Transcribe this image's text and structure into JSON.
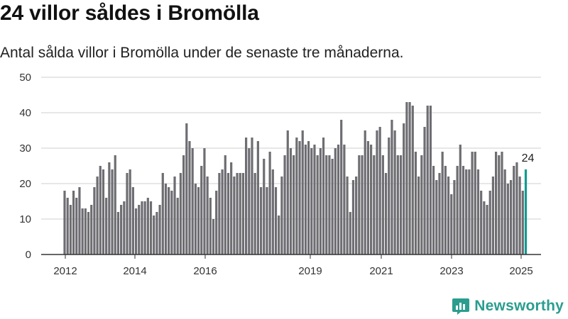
{
  "header": {
    "title": "24 villor såldes i Bromölla",
    "subtitle": "Antal sålda villor i Bromölla under de senaste tre månaderna."
  },
  "brand": {
    "name": "Newsworthy",
    "icon": "newsworthy-logo-icon"
  },
  "colors": {
    "bar": "#6e6d72",
    "highlight": "#0e9c93",
    "axis": "#333333",
    "grid": "#cfcfcf",
    "brand": "#2a9d8f"
  },
  "chart_data": {
    "type": "bar",
    "title": "",
    "xlabel": "",
    "ylabel": "",
    "ylim": [
      0,
      50
    ],
    "yticks": [
      0,
      10,
      20,
      30,
      40,
      50
    ],
    "xticks": [
      "2012",
      "2014",
      "2016",
      "2019",
      "2021",
      "2023",
      "2025"
    ],
    "grid": true,
    "highlight_label": "24",
    "values": [
      18,
      16,
      14,
      18,
      16,
      19,
      13,
      13,
      12,
      14,
      19,
      22,
      25,
      24,
      16,
      26,
      24,
      28,
      12,
      14,
      15,
      23,
      24,
      19,
      13,
      14,
      15,
      15,
      16,
      15,
      11,
      12,
      14,
      23,
      20,
      19,
      18,
      22,
      16,
      23,
      28,
      37,
      32,
      30,
      20,
      19,
      25,
      30,
      22,
      16,
      10,
      18,
      23,
      24,
      28,
      23,
      26,
      22,
      23,
      23,
      23,
      33,
      30,
      33,
      23,
      32,
      19,
      27,
      19,
      29,
      24,
      19,
      11,
      22,
      28,
      35,
      30,
      28,
      33,
      32,
      35,
      31,
      32,
      30,
      31,
      28,
      30,
      33,
      28,
      28,
      27,
      30,
      31,
      38,
      31,
      22,
      12,
      21,
      22,
      28,
      28,
      35,
      32,
      31,
      28,
      35,
      36,
      28,
      23,
      33,
      38,
      35,
      28,
      28,
      37,
      43,
      43,
      42,
      29,
      22,
      28,
      36,
      42,
      42,
      25,
      21,
      23,
      29,
      25,
      22,
      17,
      21,
      25,
      31,
      25,
      24,
      24,
      29,
      29,
      24,
      18,
      15,
      14,
      18,
      22,
      29,
      28,
      29,
      24,
      20,
      21,
      25,
      26,
      22,
      18,
      24
    ]
  }
}
